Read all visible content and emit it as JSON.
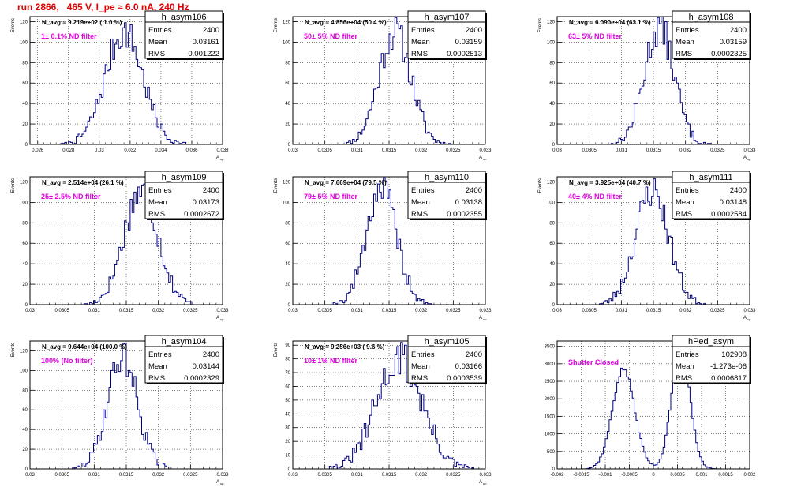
{
  "title": "run 2866,   465 V, I_pe ≈ 6.0 nA, 240 Hz",
  "colors": {
    "title": "#e00000",
    "annotation": "#e000e0",
    "histogram": "#000080"
  },
  "chart_data": [
    {
      "type": "bar",
      "hist_name": "h_asym106",
      "ylabel": "Events",
      "xlabel": "A",
      "xlabel_sub": "up",
      "navg": "N_avg = 9.219e+02 ( 1.0 %)",
      "filter": "1± 0.1% ND filter",
      "stats": {
        "entries_label": "Entries",
        "entries": "2400",
        "mean_label": "Mean",
        "mean": "0.03161",
        "rms_label": "RMS",
        "rms": "0.001222"
      },
      "xticks": [
        0.026,
        0.028,
        0.03,
        0.032,
        0.034,
        0.036,
        0.038
      ],
      "xtick_labels": [
        "0.026",
        "0.028",
        "0.03",
        "0.032",
        "0.034",
        "0.036",
        "0.038"
      ],
      "xlim": [
        0.0255,
        0.038
      ],
      "yticks": [
        0,
        20,
        40,
        60,
        80,
        100,
        120
      ],
      "ylim": [
        0,
        125
      ],
      "mean": 0.03161,
      "rms": 0.001222,
      "peak": 110,
      "entries": 2400,
      "seed": 7
    },
    {
      "type": "bar",
      "hist_name": "h_asym107",
      "ylabel": "Events",
      "xlabel": "A",
      "xlabel_sub": "up",
      "navg": "N_avg = 4.856e+04 (50.4 %)",
      "filter": "50± 5% ND filter",
      "stats": {
        "entries_label": "Entries",
        "entries": "2400",
        "mean_label": "Mean",
        "mean": "0.03159",
        "rms_label": "RMS",
        "rms": "0.0002513"
      },
      "xticks": [
        0.03,
        0.0305,
        0.031,
        0.0315,
        0.032,
        0.0325,
        0.033
      ],
      "xtick_labels": [
        "0.03",
        "0.0305",
        "0.031",
        "0.0315",
        "0.032",
        "0.0325",
        "0.033"
      ],
      "xlim": [
        0.03,
        0.033
      ],
      "yticks": [
        0,
        20,
        40,
        60,
        80,
        100,
        120
      ],
      "ylim": [
        0,
        125
      ],
      "mean": 0.03159,
      "rms": 0.0002513,
      "peak": 110,
      "entries": 2400,
      "seed": 11
    },
    {
      "type": "bar",
      "hist_name": "h_asym108",
      "ylabel": "Events",
      "xlabel": "A",
      "xlabel_sub": "up",
      "navg": "N_avg = 6.090e+04 (63.1 %)",
      "filter": "63± 5% ND filter",
      "stats": {
        "entries_label": "Entries",
        "entries": "2400",
        "mean_label": "Mean",
        "mean": "0.03159",
        "rms_label": "RMS",
        "rms": "0.0002325"
      },
      "xticks": [
        0.03,
        0.0305,
        0.031,
        0.0315,
        0.032,
        0.0325,
        0.033
      ],
      "xtick_labels": [
        "0.03",
        "0.0305",
        "0.031",
        "0.0315",
        "0.032",
        "0.0325",
        "0.033"
      ],
      "xlim": [
        0.03,
        0.033
      ],
      "yticks": [
        0,
        20,
        40,
        60,
        80,
        100,
        120
      ],
      "ylim": [
        0,
        125
      ],
      "mean": 0.03159,
      "rms": 0.0002325,
      "peak": 115,
      "entries": 2400,
      "seed": 13
    },
    {
      "type": "bar",
      "hist_name": "h_asym109",
      "ylabel": "Events",
      "xlabel": "A",
      "xlabel_sub": "up",
      "navg": "N_avg = 2.514e+04 (26.1 %)",
      "filter": "25± 2.5% ND filter",
      "stats": {
        "entries_label": "Entries",
        "entries": "2400",
        "mean_label": "Mean",
        "mean": "0.03173",
        "rms_label": "RMS",
        "rms": "0.0002672"
      },
      "xticks": [
        0.03,
        0.0305,
        0.031,
        0.0315,
        0.032,
        0.0325,
        0.033
      ],
      "xtick_labels": [
        "0.03",
        "0.0305",
        "0.031",
        "0.0315",
        "0.032",
        "0.0325",
        "0.033"
      ],
      "xlim": [
        0.03,
        0.033
      ],
      "yticks": [
        0,
        20,
        40,
        60,
        80,
        100,
        120
      ],
      "ylim": [
        0,
        125
      ],
      "mean": 0.03173,
      "rms": 0.0002672,
      "peak": 112,
      "entries": 2400,
      "seed": 17
    },
    {
      "type": "bar",
      "hist_name": "h_asym110",
      "ylabel": "Events",
      "xlabel": "A",
      "xlabel_sub": "up",
      "navg": "N_avg = 7.669e+04 (79.5 %)",
      "filter": "79± 5% ND filter",
      "stats": {
        "entries_label": "Entries",
        "entries": "2400",
        "mean_label": "Mean",
        "mean": "0.03138",
        "rms_label": "RMS",
        "rms": "0.0002355"
      },
      "xticks": [
        0.03,
        0.0305,
        0.031,
        0.0315,
        0.032,
        0.0325,
        0.033
      ],
      "xtick_labels": [
        "0.03",
        "0.0305",
        "0.031",
        "0.0315",
        "0.032",
        "0.0325",
        "0.033"
      ],
      "xlim": [
        0.03,
        0.033
      ],
      "yticks": [
        0,
        20,
        40,
        60,
        80,
        100,
        120
      ],
      "ylim": [
        0,
        125
      ],
      "mean": 0.03138,
      "rms": 0.0002355,
      "peak": 115,
      "entries": 2400,
      "seed": 19
    },
    {
      "type": "bar",
      "hist_name": "h_asym111",
      "ylabel": "Events",
      "xlabel": "A",
      "xlabel_sub": "up",
      "navg": "N_avg = 3.925e+04 (40.7 %)",
      "filter": "40± 4% ND filter",
      "stats": {
        "entries_label": "Entries",
        "entries": "2400",
        "mean_label": "Mean",
        "mean": "0.03148",
        "rms_label": "RMS",
        "rms": "0.0002584"
      },
      "xticks": [
        0.03,
        0.0305,
        0.031,
        0.0315,
        0.032,
        0.0325,
        0.033
      ],
      "xtick_labels": [
        "0.03",
        "0.0305",
        "0.031",
        "0.0315",
        "0.032",
        "0.0325",
        "0.033"
      ],
      "xlim": [
        0.03,
        0.033
      ],
      "yticks": [
        0,
        20,
        40,
        60,
        80,
        100,
        120
      ],
      "ylim": [
        0,
        125
      ],
      "mean": 0.03148,
      "rms": 0.0002584,
      "peak": 112,
      "entries": 2400,
      "seed": 23
    },
    {
      "type": "bar",
      "hist_name": "h_asym104",
      "ylabel": "Events",
      "xlabel": "A",
      "xlabel_sub": "up",
      "navg": "N_avg = 9.644e+04 (100.0 %)",
      "filter": "100% (No filter)",
      "stats": {
        "entries_label": "Entries",
        "entries": "2400",
        "mean_label": "Mean",
        "mean": "0.03144",
        "rms_label": "RMS",
        "rms": "0.0002329"
      },
      "xticks": [
        0.03,
        0.0305,
        0.031,
        0.0315,
        0.032,
        0.0325,
        0.033
      ],
      "xtick_labels": [
        "0.03",
        "0.0305",
        "0.031",
        "0.0315",
        "0.032",
        "0.0325",
        "0.033"
      ],
      "xlim": [
        0.03,
        0.033
      ],
      "yticks": [
        0,
        20,
        40,
        60,
        80,
        100,
        120
      ],
      "ylim": [
        0,
        130
      ],
      "mean": 0.03144,
      "rms": 0.0002329,
      "peak": 115,
      "entries": 2400,
      "seed": 29
    },
    {
      "type": "bar",
      "hist_name": "h_asym105",
      "ylabel": "Events",
      "xlabel": "A",
      "xlabel_sub": "up",
      "navg": "N_avg = 9.256e+03 ( 9.6 %)",
      "filter": "10± 1% ND filter",
      "stats": {
        "entries_label": "Entries",
        "entries": "2400",
        "mean_label": "Mean",
        "mean": "0.03166",
        "rms_label": "RMS",
        "rms": "0.0003539"
      },
      "xticks": [
        0.03,
        0.0305,
        0.031,
        0.0315,
        0.032,
        0.0325,
        0.033
      ],
      "xtick_labels": [
        "0.03",
        "0.0305",
        "0.031",
        "0.0315",
        "0.032",
        "0.0325",
        "0.033"
      ],
      "xlim": [
        0.03,
        0.033
      ],
      "yticks": [
        0,
        10,
        20,
        30,
        40,
        50,
        60,
        70,
        80,
        90
      ],
      "ylim": [
        0,
        93
      ],
      "mean": 0.03166,
      "rms": 0.0003539,
      "peak": 80,
      "entries": 2400,
      "seed": 31
    },
    {
      "type": "bar",
      "hist_name": "hPed_asym",
      "ylabel": "",
      "xlabel": "",
      "xlabel_sub": "",
      "navg": "",
      "filter": "Shutter Closed",
      "stats": {
        "entries_label": "Entries",
        "entries": "102908",
        "mean_label": "Mean",
        "mean": "-1.273e-06",
        "rms_label": "RMS",
        "rms": "0.0006817"
      },
      "xticks": [
        -0.002,
        -0.0015,
        -0.001,
        -0.0005,
        0,
        0.0005,
        0.001,
        0.0015,
        0.002
      ],
      "xtick_labels": [
        "-0.002",
        "-0.0015",
        "-0.001",
        "-0.0005",
        "0",
        "0.0005",
        "0.001",
        "0.0015",
        "0.002"
      ],
      "xlim": [
        -0.002,
        0.002
      ],
      "yticks": [
        0,
        500,
        1000,
        1500,
        2000,
        2500,
        3000,
        3500
      ],
      "ylim": [
        0,
        3650
      ],
      "bimodal": [
        {
          "mean": -0.00062,
          "rms": 0.00023,
          "peak": 2850
        },
        {
          "mean": 0.00057,
          "rms": 0.00019,
          "peak": 3530
        }
      ],
      "entries": 102908,
      "seed": 37
    }
  ]
}
